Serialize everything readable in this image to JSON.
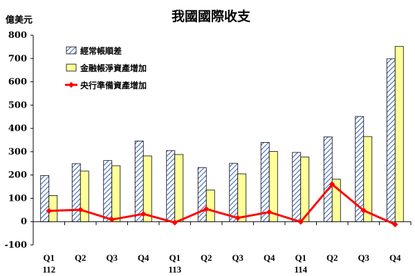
{
  "chart_data": {
    "type": "bar",
    "title": "我國國際收支",
    "ylabel": "億美元",
    "ylim": [
      -100,
      800
    ],
    "yticks": [
      -100,
      0,
      100,
      200,
      300,
      400,
      500,
      600,
      700,
      800
    ],
    "grid": false,
    "legend_position": "top-left",
    "categories": [
      "Q1",
      "Q2",
      "Q3",
      "Q4",
      "Q1",
      "Q2",
      "Q3",
      "Q4",
      "Q1",
      "Q2",
      "Q3",
      "Q4"
    ],
    "year_labels": [
      {
        "label": "112",
        "index": 0
      },
      {
        "label": "113",
        "index": 4
      },
      {
        "label": "114",
        "index": 8
      }
    ],
    "series": [
      {
        "name": "經常帳順差",
        "kind": "bar",
        "pattern": "hatch",
        "color": "#4a6fc4",
        "values": [
          198,
          249,
          262,
          346,
          305,
          232,
          250,
          340,
          297,
          364,
          451,
          699
        ]
      },
      {
        "name": "金融帳淨資產增加",
        "kind": "bar",
        "color": "#ffff99",
        "values": [
          112,
          217,
          240,
          282,
          288,
          136,
          205,
          301,
          277,
          182,
          365,
          752
        ]
      },
      {
        "name": "央行準備資產增加",
        "kind": "line",
        "color": "#ff0000",
        "values": [
          46,
          51,
          9,
          33,
          -4,
          54,
          16,
          41,
          -1,
          160,
          48,
          -12
        ]
      }
    ]
  }
}
